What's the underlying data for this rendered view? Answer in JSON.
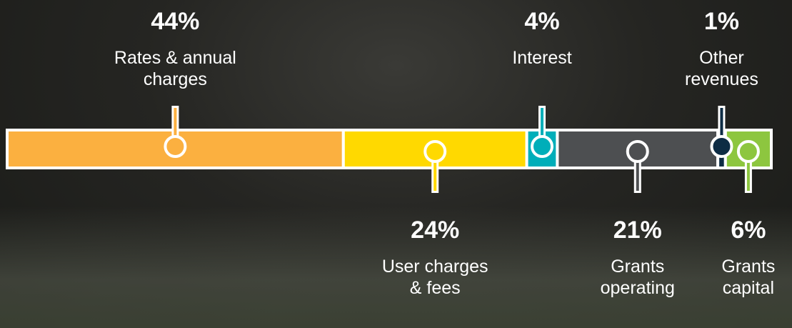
{
  "chart_data": {
    "type": "stacked-bar",
    "series": [
      {
        "name": "Rates & annual charges",
        "color": "#fbb040",
        "values": [
          44
        ],
        "value_labels": [
          "44%"
        ]
      },
      {
        "name": "User charges & fees",
        "color": "#ffd900",
        "values": [
          24
        ],
        "value_labels": [
          "24%"
        ]
      },
      {
        "name": "Interest",
        "color": "#00aeb9",
        "values": [
          4
        ],
        "value_labels": [
          "4%"
        ]
      },
      {
        "name": "Grants operating",
        "color": "#4d4f51",
        "values": [
          21
        ],
        "value_labels": [
          "21%"
        ]
      },
      {
        "name": "Other revenues",
        "color": "#0d2c44",
        "values": [
          1
        ],
        "value_labels": [
          "1%"
        ]
      },
      {
        "name": "Grants capital",
        "color": "#8dc63f",
        "values": [
          6
        ],
        "value_labels": [
          "6%"
        ]
      }
    ]
  }
}
